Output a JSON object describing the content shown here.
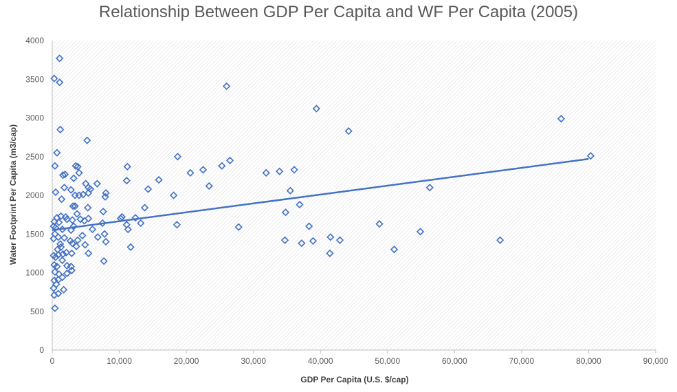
{
  "chart_data": {
    "type": "scatter",
    "title": "Relationship Between GDP Per Capita and WF Per Capita (2005)",
    "xlabel": "GDP Per Capita (U.S. $/cap)",
    "ylabel": "Water Footprint Per Capita (m3/cap)",
    "xlim": [
      0,
      90000
    ],
    "ylim": [
      0,
      4000
    ],
    "x_ticks": [
      0,
      10000,
      20000,
      30000,
      40000,
      50000,
      60000,
      70000,
      80000,
      90000
    ],
    "x_tick_labels": [
      "0",
      "10,000",
      "20,000",
      "30,000",
      "40,000",
      "50,000",
      "60,000",
      "70,000",
      "80,000",
      "90,000"
    ],
    "y_ticks": [
      0,
      500,
      1000,
      1500,
      2000,
      2500,
      3000,
      3500,
      4000
    ],
    "y_tick_labels": [
      "0",
      "500",
      "1000",
      "1500",
      "2000",
      "2500",
      "3000",
      "3500",
      "4000"
    ],
    "grid": false,
    "legend": "none",
    "marker": "diamond-outline",
    "trendline": {
      "type": "linear",
      "x": [
        0,
        80000
      ],
      "y": [
        1550,
        2470
      ]
    },
    "colors": {
      "series": "#4472C4",
      "trendline": "#4472C4",
      "axis": "#BFBFBF",
      "text": "#595959",
      "plot_hatch": "#D9D9D9"
    },
    "points": [
      [
        300,
        3510
      ],
      [
        1100,
        3770
      ],
      [
        1100,
        3460
      ],
      [
        1200,
        2850
      ],
      [
        5200,
        2710
      ],
      [
        700,
        2550
      ],
      [
        400,
        2380
      ],
      [
        3500,
        2380
      ],
      [
        3800,
        2370
      ],
      [
        1600,
        2260
      ],
      [
        1900,
        2270
      ],
      [
        4000,
        2290
      ],
      [
        3200,
        2220
      ],
      [
        5000,
        2150
      ],
      [
        6700,
        2150
      ],
      [
        5400,
        2100
      ],
      [
        5700,
        2080
      ],
      [
        1800,
        2100
      ],
      [
        2800,
        2070
      ],
      [
        3400,
        2000
      ],
      [
        4000,
        2000
      ],
      [
        4600,
        2010
      ],
      [
        5400,
        2030
      ],
      [
        8000,
        2030
      ],
      [
        7900,
        1980
      ],
      [
        500,
        2040
      ],
      [
        1400,
        1950
      ],
      [
        7600,
        1790
      ],
      [
        3100,
        1860
      ],
      [
        3400,
        1860
      ],
      [
        5300,
        1840
      ],
      [
        3700,
        1760
      ],
      [
        2000,
        1720
      ],
      [
        700,
        1710
      ],
      [
        1300,
        1730
      ],
      [
        300,
        1660
      ],
      [
        1000,
        1650
      ],
      [
        2200,
        1690
      ],
      [
        3000,
        1680
      ],
      [
        4200,
        1690
      ],
      [
        5400,
        1700
      ],
      [
        4800,
        1670
      ],
      [
        200,
        1600
      ],
      [
        500,
        1580
      ],
      [
        1500,
        1560
      ],
      [
        2800,
        1550
      ],
      [
        3200,
        1600
      ],
      [
        6000,
        1560
      ],
      [
        7500,
        1640
      ],
      [
        7800,
        1500
      ],
      [
        400,
        1500
      ],
      [
        900,
        1460
      ],
      [
        1800,
        1450
      ],
      [
        2700,
        1410
      ],
      [
        3800,
        1420
      ],
      [
        4500,
        1480
      ],
      [
        6800,
        1460
      ],
      [
        8000,
        1400
      ],
      [
        200,
        1440
      ],
      [
        1200,
        1370
      ],
      [
        3000,
        1380
      ],
      [
        3600,
        1340
      ],
      [
        4900,
        1360
      ],
      [
        800,
        1300
      ],
      [
        1300,
        1330
      ],
      [
        2100,
        1260
      ],
      [
        2900,
        1250
      ],
      [
        5400,
        1250
      ],
      [
        7700,
        1150
      ],
      [
        200,
        1220
      ],
      [
        500,
        1200
      ],
      [
        900,
        1230
      ],
      [
        1600,
        1240
      ],
      [
        300,
        1100
      ],
      [
        700,
        1080
      ],
      [
        1500,
        1160
      ],
      [
        2200,
        1090
      ],
      [
        2800,
        1080
      ],
      [
        400,
        1010
      ],
      [
        1000,
        980
      ],
      [
        2200,
        990
      ],
      [
        2900,
        1030
      ],
      [
        300,
        900
      ],
      [
        900,
        910
      ],
      [
        1500,
        940
      ],
      [
        200,
        800
      ],
      [
        600,
        850
      ],
      [
        300,
        710
      ],
      [
        900,
        730
      ],
      [
        1700,
        780
      ],
      [
        400,
        540
      ],
      [
        10200,
        1700
      ],
      [
        10400,
        1720
      ],
      [
        11200,
        2370
      ],
      [
        11100,
        2190
      ],
      [
        11100,
        1620
      ],
      [
        11300,
        1560
      ],
      [
        11700,
        1330
      ],
      [
        12400,
        1710
      ],
      [
        13200,
        1640
      ],
      [
        13800,
        1840
      ],
      [
        14300,
        2080
      ],
      [
        15900,
        2200
      ],
      [
        18100,
        2000
      ],
      [
        18600,
        1620
      ],
      [
        18700,
        2500
      ],
      [
        20600,
        2290
      ],
      [
        22500,
        2330
      ],
      [
        23400,
        2120
      ],
      [
        25300,
        2380
      ],
      [
        26000,
        3410
      ],
      [
        26500,
        2450
      ],
      [
        27800,
        1590
      ],
      [
        31900,
        2290
      ],
      [
        33900,
        2310
      ],
      [
        34800,
        1780
      ],
      [
        34700,
        1420
      ],
      [
        35500,
        2060
      ],
      [
        36100,
        2330
      ],
      [
        36900,
        1880
      ],
      [
        37200,
        1380
      ],
      [
        38300,
        1600
      ],
      [
        38900,
        1410
      ],
      [
        39400,
        3120
      ],
      [
        41500,
        1460
      ],
      [
        41400,
        1250
      ],
      [
        42900,
        1420
      ],
      [
        44200,
        2830
      ],
      [
        48800,
        1630
      ],
      [
        51000,
        1300
      ],
      [
        54900,
        1530
      ],
      [
        56300,
        2100
      ],
      [
        66800,
        1420
      ],
      [
        75900,
        2990
      ],
      [
        80300,
        2510
      ]
    ]
  }
}
